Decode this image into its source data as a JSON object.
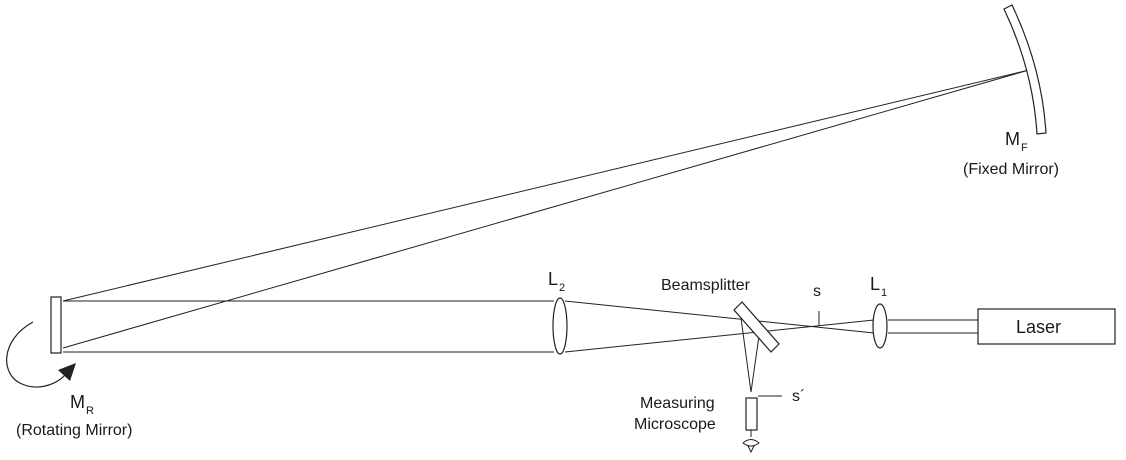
{
  "labels": {
    "mirror_fixed_symbol": "M",
    "mirror_fixed_subscript": "F",
    "mirror_fixed_caption": "(Fixed Mirror)",
    "mirror_rotating_symbol": "M",
    "mirror_rotating_subscript": "R",
    "mirror_rotating_caption": "(Rotating Mirror)",
    "lens2_symbol": "L",
    "lens2_subscript": "2",
    "lens1_symbol": "L",
    "lens1_subscript": "1",
    "beamsplitter": "Beamsplitter",
    "source_point": "s",
    "image_point": "s´",
    "microscope_line1": "Measuring",
    "microscope_line2": "Microscope",
    "laser": "Laser"
  },
  "colors": {
    "line": "#222222",
    "background": "#ffffff"
  }
}
